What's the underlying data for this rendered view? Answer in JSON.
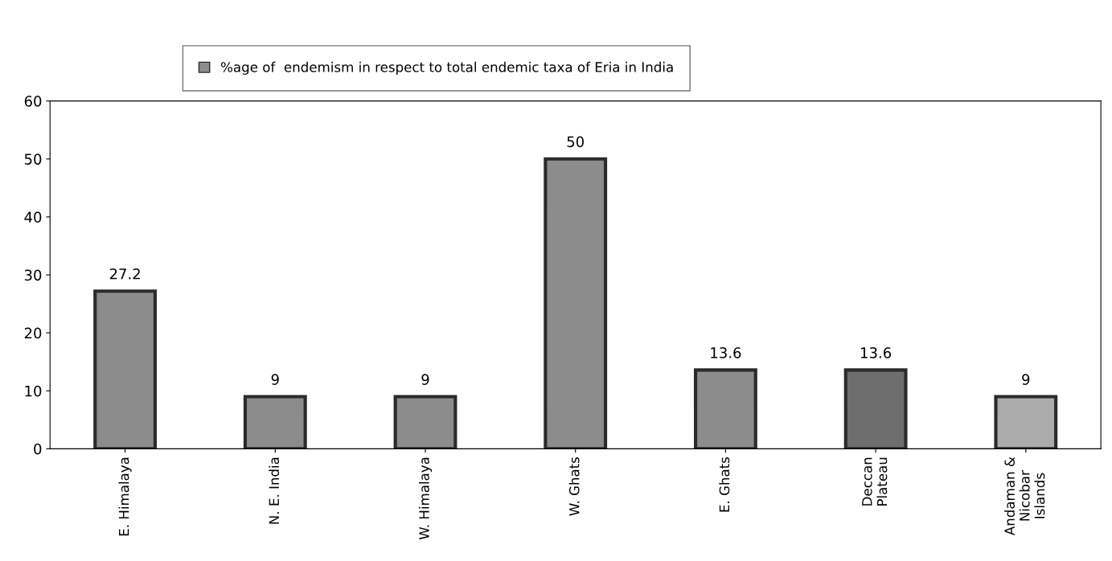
{
  "chart_data": {
    "type": "bar",
    "categories": [
      "E. Himalaya",
      "N. E. India",
      "W. Himalaya",
      "W. Ghats",
      "E. Ghats",
      "Deccan\nPlateau",
      "Andaman &\nNicobar\nIslands"
    ],
    "series": [
      {
        "name": "%age of  endemism in respect to total endemic taxa of Eria in India",
        "color": "#8c8c8c",
        "colors": [
          "#8c8c8c",
          "#8c8c8c",
          "#8c8c8c",
          "#8c8c8c",
          "#8c8c8c",
          "#6e6e6e",
          "#ababab"
        ],
        "values": [
          27.2,
          9,
          9,
          50,
          13.6,
          13.6,
          9
        ]
      }
    ],
    "ylim": [
      0,
      60
    ],
    "yticks": [
      0,
      10,
      20,
      30,
      40,
      50,
      60
    ],
    "data_labels": true,
    "grid": false,
    "legend": "top"
  }
}
